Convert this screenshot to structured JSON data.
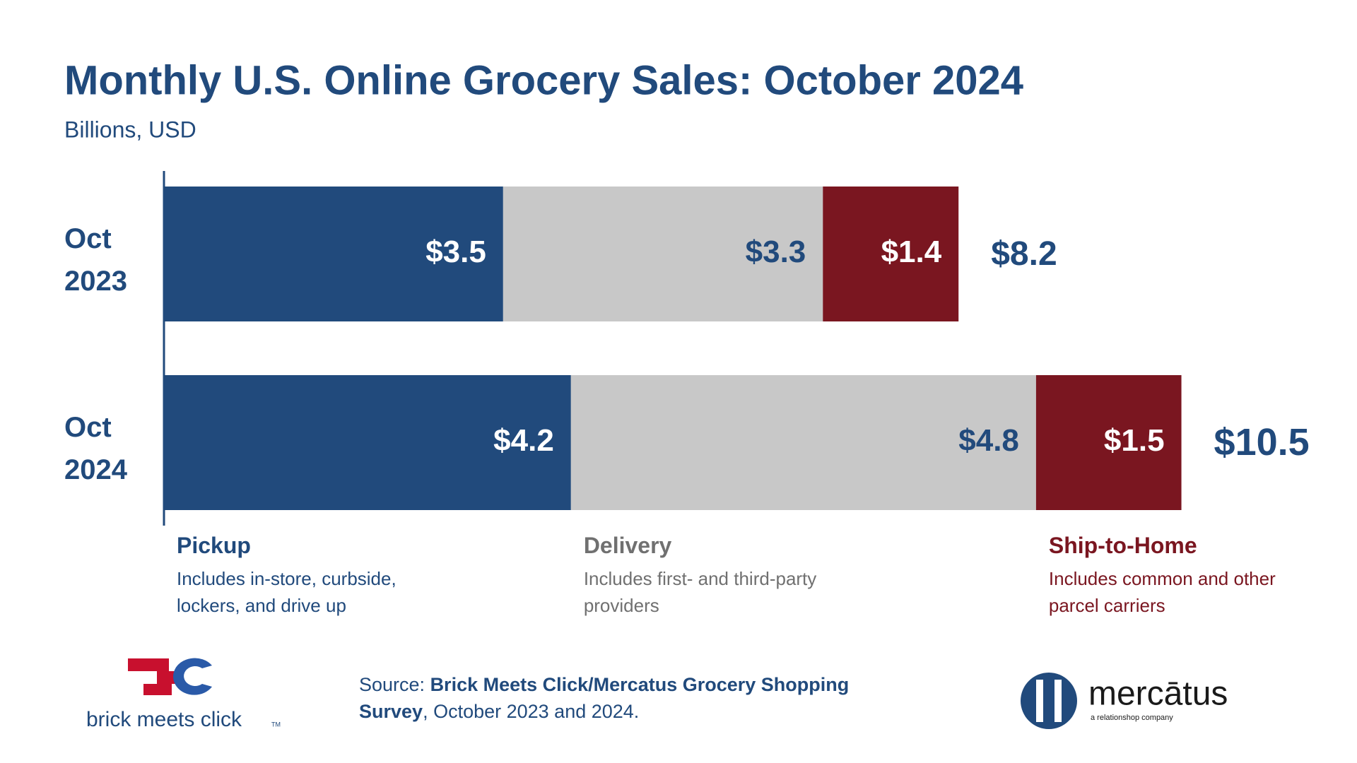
{
  "chart_data": {
    "type": "stacked-bar-horizontal",
    "title": "Monthly U.S. Online Grocery Sales: October 2024",
    "subtitle": "Billions, USD",
    "categories": [
      "Oct 2023",
      "Oct 2024"
    ],
    "series": [
      {
        "name": "Pickup",
        "description": "Includes in-store, curbside, lockers, and drive up",
        "color": "#214a7c",
        "label_color": "#ffffff",
        "values": [
          3.5,
          4.2
        ],
        "value_labels": [
          "$3.5",
          "$4.2"
        ]
      },
      {
        "name": "Delivery",
        "description": "Includes first- and third-party providers",
        "color": "#c8c8c8",
        "label_color": "#214a7c",
        "legend_color": "#707070",
        "values": [
          3.3,
          4.8
        ],
        "value_labels": [
          "$3.3",
          "$4.8"
        ]
      },
      {
        "name": "Ship-to-Home",
        "description": "Includes common and other parcel carriers",
        "color": "#7a1620",
        "label_color": "#ffffff",
        "values": [
          1.4,
          1.5
        ],
        "value_labels": [
          "$1.4",
          "$1.5"
        ]
      }
    ],
    "totals": [
      8.2,
      10.5
    ],
    "total_labels": [
      "$8.2",
      "$10.5"
    ],
    "xlim": [
      0,
      12
    ]
  },
  "source": {
    "prefix": "Source: ",
    "name": "Brick Meets Click/Mercatus Grocery Shopping Survey",
    "suffix": ", October 2023 and 2024."
  },
  "logos": {
    "brick": "brick meets click",
    "brick_tm": "TM",
    "mercatus": "mercātus",
    "mercatus_tagline": "a relationshop company"
  }
}
